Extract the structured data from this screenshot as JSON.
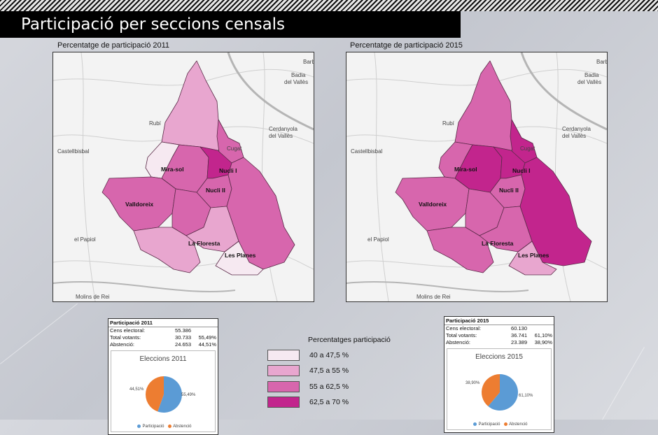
{
  "header": {
    "title": "Participació per seccions censals"
  },
  "maps": [
    {
      "title": "Percentatge de participació 2011"
    },
    {
      "title": "Percentatge de participació 2015"
    }
  ],
  "place_names": {
    "barbera": "Barb",
    "badia": "Badia",
    "del_valles": "del Vallès",
    "rubi": "Rubí",
    "cerdanyola": "Cerdanyola",
    "cerdanyola_sub": "del Vallès",
    "cugat": "Cugat",
    "castellbisbal": "Castellbisbal",
    "papiol": "el Papiol",
    "molins": "Molins de Rei"
  },
  "district_labels": {
    "mirasol": "Mira-sol",
    "nucli_i": "Nucli I",
    "nucli_ii": "Nucli II",
    "valldoreix": "Valldoreix",
    "floresta": "La Floresta",
    "planes": "Les Planes"
  },
  "colors": {
    "c1": "#f6e9f1",
    "c2": "#e8a6cf",
    "c3": "#d766ad",
    "c4": "#c2258d"
  },
  "stats": [
    {
      "title": "Participació 2011",
      "rows": [
        {
          "label": "Cens electoral:",
          "value": "55.386",
          "pct": ""
        },
        {
          "label": "Total votants:",
          "value": "30.733",
          "pct": "55,49%"
        },
        {
          "label": "Abstenció:",
          "value": "24.653",
          "pct": "44,51%"
        }
      ],
      "pie": {
        "title": "Eleccions 2011",
        "participacio_pct": 55.49,
        "label_participacio": "55,49%",
        "label_abstencio": "44,51%",
        "legend_participacio": "Participació",
        "legend_abstencio": "Abstenció",
        "color_participacio": "#5b9bd5",
        "color_abstencio": "#ed7d31"
      }
    },
    {
      "title": "Participació 2015",
      "rows": [
        {
          "label": "Cens electoral:",
          "value": "60.130",
          "pct": ""
        },
        {
          "label": "Total votants:",
          "value": "36.741",
          "pct": "61,10%"
        },
        {
          "label": "Abstenció:",
          "value": "23.389",
          "pct": "38,90%"
        }
      ],
      "pie": {
        "title": "Eleccions 2015",
        "participacio_pct": 61.1,
        "label_participacio": "61,10%",
        "label_abstencio": "38,90%",
        "legend_participacio": "Participació",
        "legend_abstencio": "Abstenció",
        "color_participacio": "#5b9bd5",
        "color_abstencio": "#ed7d31"
      }
    }
  ],
  "legend": {
    "title": "Percentatges participació",
    "items": [
      {
        "label": "40 a 47,5 %",
        "color": "#f6e9f1"
      },
      {
        "label": "47,5 a 55 %",
        "color": "#e8a6cf"
      },
      {
        "label": "55 a 62,5 %",
        "color": "#d766ad"
      },
      {
        "label": "62,5 a 70 %",
        "color": "#c2258d"
      }
    ]
  }
}
